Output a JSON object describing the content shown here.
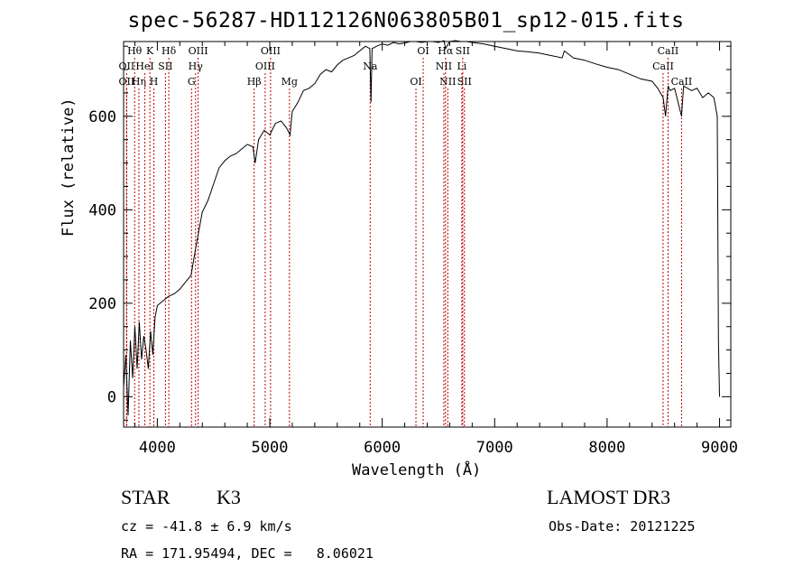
{
  "chart_data": {
    "type": "line",
    "title": "spec-56287-HD112126N063805B01_sp12-015.fits",
    "xlabel": "Wavelength (Å)",
    "ylabel": "Flux (relative)",
    "xlim": [
      3700,
      9100
    ],
    "ylim": [
      -65,
      760
    ],
    "x_ticks": [
      4000,
      5000,
      6000,
      7000,
      8000,
      9000
    ],
    "y_ticks": [
      0,
      200,
      400,
      600
    ],
    "grid": false,
    "series": [
      {
        "x": [
          3700,
          3720,
          3740,
          3760,
          3780,
          3800,
          3820,
          3840,
          3860,
          3880,
          3900,
          3920,
          3940,
          3960,
          3980,
          4000,
          4050,
          4100,
          4150,
          4200,
          4250,
          4300,
          4350,
          4400,
          4450,
          4500,
          4550,
          4600,
          4650,
          4700,
          4750,
          4800,
          4850,
          4870,
          4900,
          4950,
          5000,
          5050,
          5100,
          5150,
          5180,
          5200,
          5250,
          5300,
          5350,
          5400,
          5450,
          5500,
          5550,
          5600,
          5650,
          5700,
          5750,
          5800,
          5850,
          5890,
          5900,
          5910,
          5950,
          6000,
          6050,
          6100,
          6150,
          6200,
          6250,
          6300,
          6350,
          6400,
          6450,
          6500,
          6550,
          6563,
          6600,
          6650,
          6700,
          6750,
          6800,
          6900,
          7000,
          7100,
          7200,
          7300,
          7400,
          7500,
          7600,
          7620,
          7700,
          7800,
          7900,
          8000,
          8100,
          8200,
          8300,
          8400,
          8450,
          8498,
          8520,
          8542,
          8560,
          8600,
          8662,
          8680,
          8750,
          8800,
          8850,
          8900,
          8950,
          8980,
          8990,
          9000
        ],
        "y": [
          20,
          90,
          -40,
          120,
          40,
          150,
          60,
          160,
          80,
          130,
          100,
          60,
          140,
          90,
          170,
          195,
          205,
          215,
          220,
          230,
          245,
          260,
          330,
          395,
          420,
          455,
          490,
          505,
          515,
          520,
          530,
          540,
          535,
          500,
          550,
          570,
          560,
          585,
          590,
          575,
          560,
          610,
          630,
          655,
          660,
          670,
          690,
          700,
          695,
          710,
          720,
          725,
          730,
          740,
          750,
          745,
          630,
          745,
          750,
          755,
          752,
          758,
          755,
          757,
          760,
          760,
          758,
          760,
          760,
          758,
          762,
          745,
          760,
          762,
          760,
          760,
          758,
          755,
          750,
          745,
          740,
          738,
          735,
          730,
          725,
          740,
          725,
          720,
          712,
          705,
          700,
          690,
          680,
          675,
          660,
          640,
          600,
          665,
          655,
          660,
          600,
          665,
          655,
          660,
          640,
          650,
          640,
          600,
          120,
          0
        ]
      }
    ],
    "line_markers": [
      {
        "label": "OII",
        "wl": 3727,
        "row": 2
      },
      {
        "label": "OII",
        "wl": 3727,
        "row": 1
      },
      {
        "label": "Hθ",
        "wl": 3798,
        "row": 0
      },
      {
        "label": "Hη",
        "wl": 3836,
        "row": 2
      },
      {
        "label": "HeI",
        "wl": 3889,
        "row": 1
      },
      {
        "label": "K",
        "wl": 3934,
        "row": 0
      },
      {
        "label": "H",
        "wl": 3969,
        "row": 2
      },
      {
        "label": "SII",
        "wl": 4072,
        "row": 1
      },
      {
        "label": "Hδ",
        "wl": 4102,
        "row": 0
      },
      {
        "label": "G",
        "wl": 4304,
        "row": 2
      },
      {
        "label": "Hγ",
        "wl": 4340,
        "row": 1
      },
      {
        "label": "OIII",
        "wl": 4363,
        "row": 0
      },
      {
        "label": "Hβ",
        "wl": 4861,
        "row": 2
      },
      {
        "label": "OIII",
        "wl": 4959,
        "row": 1
      },
      {
        "label": "OIII",
        "wl": 5007,
        "row": 0
      },
      {
        "label": "Mg",
        "wl": 5175,
        "row": 2
      },
      {
        "label": "Na",
        "wl": 5893,
        "row": 1
      },
      {
        "label": "OI",
        "wl": 6300,
        "row": 2
      },
      {
        "label": "OI",
        "wl": 6364,
        "row": 0
      },
      {
        "label": "NII",
        "wl": 6548,
        "row": 1
      },
      {
        "label": "Hα",
        "wl": 6563,
        "row": 0
      },
      {
        "label": "NII",
        "wl": 6583,
        "row": 2
      },
      {
        "label": "Li",
        "wl": 6708,
        "row": 1
      },
      {
        "label": "SII",
        "wl": 6716,
        "row": 0
      },
      {
        "label": "SII",
        "wl": 6731,
        "row": 2
      },
      {
        "label": "CaII",
        "wl": 8498,
        "row": 1
      },
      {
        "label": "CaII",
        "wl": 8542,
        "row": 0
      },
      {
        "label": "CaII",
        "wl": 8662,
        "row": 2
      }
    ]
  },
  "info": {
    "object_class": "STAR",
    "subclass": "K3",
    "survey": "LAMOST DR3",
    "cz": "cz = -41.8 ± 6.9 km/s",
    "obs_date": "Obs-Date: 20121225",
    "coords": "RA = 171.95494, DEC =   8.06021"
  },
  "colors": {
    "line_marker": "#c00000",
    "spectrum": "#000000"
  }
}
